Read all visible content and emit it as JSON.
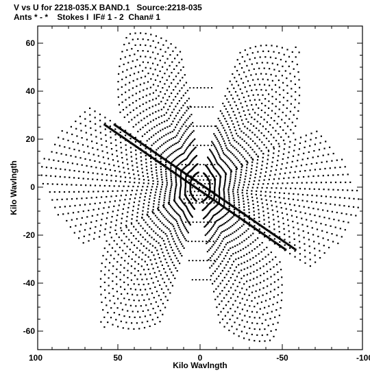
{
  "title_line1": "V vs U for 2218-035.X BAND.1   Source:2218-035",
  "title_line2": "Ants * - *    Stokes I  IF# 1 - 2  Chan# 1",
  "chart_data": {
    "type": "scatter",
    "xlabel": "Kilo Wavlngth",
    "ylabel": "Kilo Wavlngth",
    "xlim": [
      100,
      -100
    ],
    "ylim": [
      -67,
      67
    ],
    "xticks": [
      100,
      50,
      0,
      -50,
      -100
    ],
    "yticks": [
      60,
      40,
      20,
      0,
      -20,
      -40,
      -60
    ],
    "xtick_labels": [
      "100",
      "50",
      "0",
      "-50",
      "-100"
    ],
    "ytick_labels": [
      "60",
      "40",
      "20",
      "0",
      "-20",
      "-40",
      "-60"
    ],
    "grid": false,
    "arm_tips": [
      [
        -60,
        58
      ],
      [
        45,
        65
      ],
      [
        -100,
        -7
      ],
      [
        60,
        -58
      ],
      [
        -45,
        -65
      ],
      [
        100,
        7
      ]
    ],
    "dense_diagonals": [
      [
        [
          58,
          26
        ],
        [
          -52,
          -26
        ]
      ],
      [
        [
          52,
          26
        ],
        [
          -58,
          -26
        ]
      ]
    ],
    "marker_color": "#000000"
  }
}
